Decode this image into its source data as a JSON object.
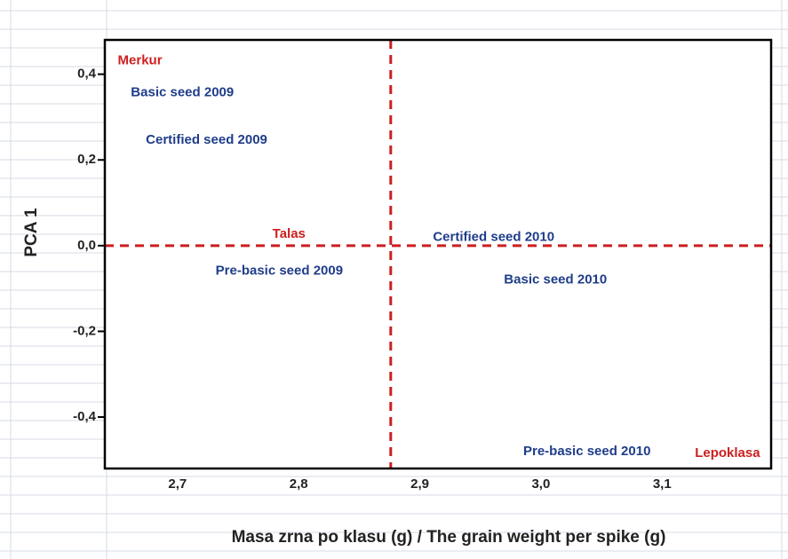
{
  "chart_data": {
    "type": "scatter",
    "xlabel": "Masa zrna po klasu (g)  / The grain weight per spike (g)",
    "ylabel": "PCA 1",
    "xlim": [
      2.64,
      3.19
    ],
    "ylim": [
      -0.52,
      0.48
    ],
    "xticks": [
      {
        "value": 2.7,
        "label": "2,7"
      },
      {
        "value": 2.8,
        "label": "2,8"
      },
      {
        "value": 2.9,
        "label": "2,9"
      },
      {
        "value": 3.0,
        "label": "3,0"
      },
      {
        "value": 3.1,
        "label": "3,1"
      }
    ],
    "yticks": [
      {
        "value": 0.4,
        "label": "0,4"
      },
      {
        "value": 0.2,
        "label": "0,2"
      },
      {
        "value": 0,
        "label": "0,0"
      },
      {
        "value": -0.2,
        "label": "-0,2"
      },
      {
        "value": -0.4,
        "label": "-0,4"
      }
    ],
    "reference_lines": {
      "x": 2.876,
      "y": 0,
      "color": "#cc1f1f"
    },
    "series": [
      {
        "color": "#cc1f1f",
        "labels": [
          "Merkur",
          "Talas",
          "Lepoklasa"
        ],
        "x": [
          2.669,
          2.792,
          3.154
        ],
        "y": [
          0.431,
          0.027,
          -0.485
        ]
      },
      {
        "color": "#1f3d8a",
        "labels": [
          "Basic seed 2009",
          "Certified seed 2009",
          "Pre-basic seed 2009",
          "Certified seed 2010",
          "Basic seed 2010",
          "Pre-basic seed 2010"
        ],
        "x": [
          2.704,
          2.724,
          2.784,
          2.961,
          3.012,
          3.038
        ],
        "y": [
          0.357,
          0.246,
          -0.059,
          0.019,
          -0.08,
          -0.481
        ]
      }
    ]
  }
}
